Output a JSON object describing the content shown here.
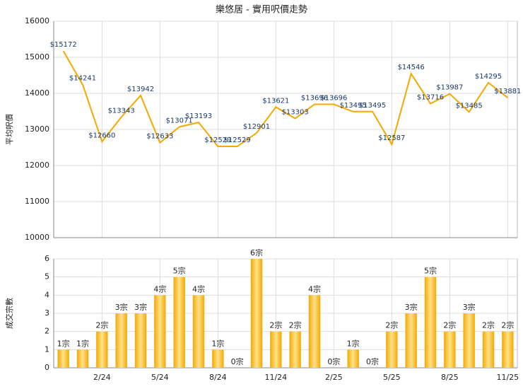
{
  "chart_data": [
    {
      "type": "line",
      "title": "樂悠居 - 實用呎價走勢",
      "y_label": "平均呎價",
      "values": [
        15172,
        14241,
        12660,
        13343,
        13942,
        12633,
        13071,
        13193,
        12529,
        12529,
        12901,
        13621,
        13303,
        13696,
        13696,
        13495,
        13495,
        12587,
        14546,
        13716,
        13987,
        13485,
        14295,
        13881
      ],
      "value_labels": [
        "$15172",
        "$14241",
        "$12660",
        "$13343",
        "$13942",
        "$12633",
        "$13071",
        "$13193",
        "$12529",
        "$12529",
        "$12901",
        "$13621",
        "$13303",
        "$13696",
        "$13696",
        "$13495",
        "$13495",
        "$12587",
        "$14546",
        "$13716",
        "$13987",
        "$13485",
        "$14295",
        "$13881"
      ],
      "color": "#f5a800",
      "ylim": [
        10000,
        16000
      ],
      "yticks": [
        10000,
        11000,
        12000,
        13000,
        14000,
        15000,
        16000
      ],
      "grid": true
    },
    {
      "type": "bar",
      "y_label": "成交宗數",
      "categories": [
        null,
        null,
        "2/24",
        null,
        null,
        "5/24",
        null,
        null,
        "8/24",
        null,
        null,
        "11/24",
        null,
        null,
        "2/25",
        null,
        null,
        "5/25",
        null,
        null,
        "8/25",
        null,
        null,
        "11/25"
      ],
      "values": [
        1,
        1,
        2,
        3,
        3,
        4,
        5,
        4,
        1,
        0,
        6,
        2,
        2,
        4,
        0,
        1,
        0,
        2,
        3,
        5,
        2,
        3,
        2,
        2
      ],
      "value_labels": [
        "1宗",
        "1宗",
        "2宗",
        "3宗",
        "3宗",
        "4宗",
        "5宗",
        "4宗",
        "1宗",
        "0宗",
        "6宗",
        "2宗",
        "2宗",
        "4宗",
        "0宗",
        "1宗",
        "0宗",
        "2宗",
        "3宗",
        "5宗",
        "2宗",
        "3宗",
        "2宗",
        "2宗"
      ],
      "color": "#f5a800",
      "ylim": [
        0,
        6
      ],
      "yticks": [
        0,
        1,
        2,
        3,
        4,
        5,
        6
      ],
      "grid": true
    }
  ]
}
